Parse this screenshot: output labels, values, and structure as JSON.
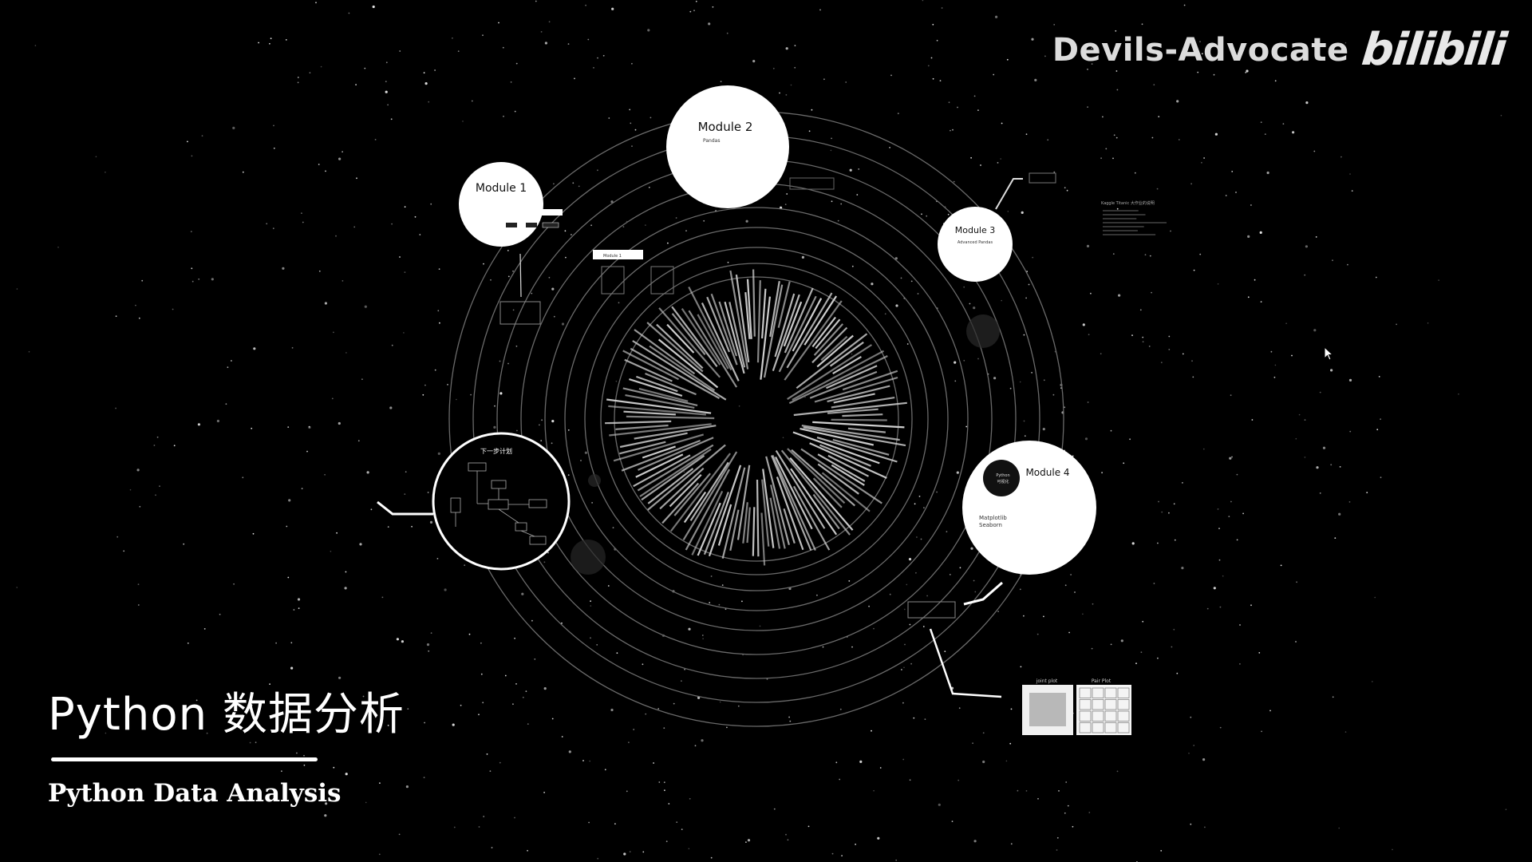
{
  "watermark": {
    "channel": "Devils-Advocate",
    "logo": "bilibili"
  },
  "title": {
    "cn": "Python 数据分析",
    "en": "Python Data Analysis"
  },
  "modules": [
    {
      "name": "Module 1",
      "subtitle": ""
    },
    {
      "name": "Module 2",
      "subtitle": "Pandas"
    },
    {
      "name": "Module 3",
      "subtitle": "Advanced Pandas"
    },
    {
      "name": "Module 4",
      "subtitle_lines": [
        "Matplotlib",
        "Seaborn"
      ],
      "badge_lines": [
        "Python",
        "可视化"
      ]
    }
  ],
  "next_plan": {
    "title": "下一步计划"
  },
  "small_notes": {
    "module1_box": "Module 1",
    "right_note_title": "Kaggle Titanic 大作业的说明"
  },
  "thumbnails": [
    {
      "label": "joint plot"
    },
    {
      "label": "Pair Plot"
    }
  ],
  "colors": {
    "background": "#000000",
    "foreground": "#ffffff",
    "orbit": "#6a6a6a"
  }
}
